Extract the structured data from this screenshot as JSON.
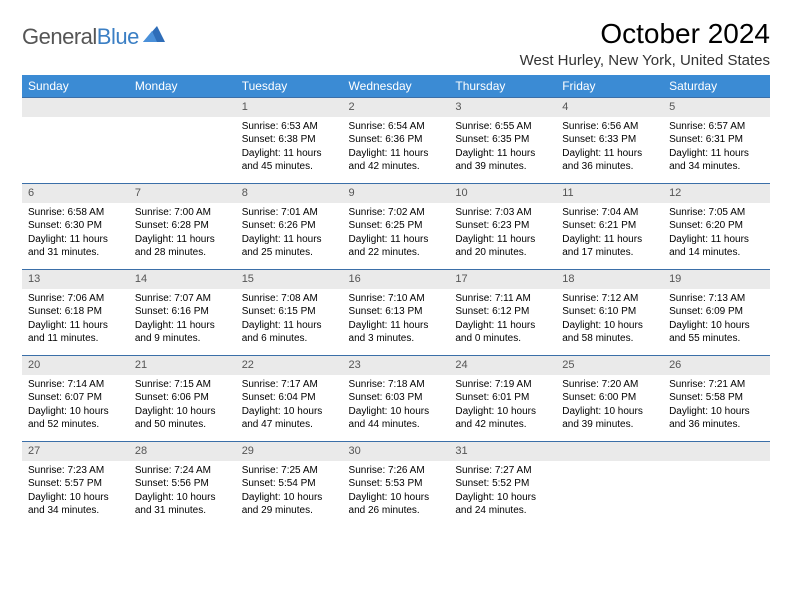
{
  "logo": {
    "text1": "General",
    "text2": "Blue"
  },
  "title": "October 2024",
  "location": "West Hurley, New York, United States",
  "header_bg": "#3b8bd4",
  "row_border": "#3b6fa8",
  "daynum_bg": "#eaeaea",
  "weekdays": [
    "Sunday",
    "Monday",
    "Tuesday",
    "Wednesday",
    "Thursday",
    "Friday",
    "Saturday"
  ],
  "weeks": [
    [
      null,
      null,
      {
        "n": "1",
        "sr": "6:53 AM",
        "ss": "6:38 PM",
        "dl": "11 hours and 45 minutes."
      },
      {
        "n": "2",
        "sr": "6:54 AM",
        "ss": "6:36 PM",
        "dl": "11 hours and 42 minutes."
      },
      {
        "n": "3",
        "sr": "6:55 AM",
        "ss": "6:35 PM",
        "dl": "11 hours and 39 minutes."
      },
      {
        "n": "4",
        "sr": "6:56 AM",
        "ss": "6:33 PM",
        "dl": "11 hours and 36 minutes."
      },
      {
        "n": "5",
        "sr": "6:57 AM",
        "ss": "6:31 PM",
        "dl": "11 hours and 34 minutes."
      }
    ],
    [
      {
        "n": "6",
        "sr": "6:58 AM",
        "ss": "6:30 PM",
        "dl": "11 hours and 31 minutes."
      },
      {
        "n": "7",
        "sr": "7:00 AM",
        "ss": "6:28 PM",
        "dl": "11 hours and 28 minutes."
      },
      {
        "n": "8",
        "sr": "7:01 AM",
        "ss": "6:26 PM",
        "dl": "11 hours and 25 minutes."
      },
      {
        "n": "9",
        "sr": "7:02 AM",
        "ss": "6:25 PM",
        "dl": "11 hours and 22 minutes."
      },
      {
        "n": "10",
        "sr": "7:03 AM",
        "ss": "6:23 PM",
        "dl": "11 hours and 20 minutes."
      },
      {
        "n": "11",
        "sr": "7:04 AM",
        "ss": "6:21 PM",
        "dl": "11 hours and 17 minutes."
      },
      {
        "n": "12",
        "sr": "7:05 AM",
        "ss": "6:20 PM",
        "dl": "11 hours and 14 minutes."
      }
    ],
    [
      {
        "n": "13",
        "sr": "7:06 AM",
        "ss": "6:18 PM",
        "dl": "11 hours and 11 minutes."
      },
      {
        "n": "14",
        "sr": "7:07 AM",
        "ss": "6:16 PM",
        "dl": "11 hours and 9 minutes."
      },
      {
        "n": "15",
        "sr": "7:08 AM",
        "ss": "6:15 PM",
        "dl": "11 hours and 6 minutes."
      },
      {
        "n": "16",
        "sr": "7:10 AM",
        "ss": "6:13 PM",
        "dl": "11 hours and 3 minutes."
      },
      {
        "n": "17",
        "sr": "7:11 AM",
        "ss": "6:12 PM",
        "dl": "11 hours and 0 minutes."
      },
      {
        "n": "18",
        "sr": "7:12 AM",
        "ss": "6:10 PM",
        "dl": "10 hours and 58 minutes."
      },
      {
        "n": "19",
        "sr": "7:13 AM",
        "ss": "6:09 PM",
        "dl": "10 hours and 55 minutes."
      }
    ],
    [
      {
        "n": "20",
        "sr": "7:14 AM",
        "ss": "6:07 PM",
        "dl": "10 hours and 52 minutes."
      },
      {
        "n": "21",
        "sr": "7:15 AM",
        "ss": "6:06 PM",
        "dl": "10 hours and 50 minutes."
      },
      {
        "n": "22",
        "sr": "7:17 AM",
        "ss": "6:04 PM",
        "dl": "10 hours and 47 minutes."
      },
      {
        "n": "23",
        "sr": "7:18 AM",
        "ss": "6:03 PM",
        "dl": "10 hours and 44 minutes."
      },
      {
        "n": "24",
        "sr": "7:19 AM",
        "ss": "6:01 PM",
        "dl": "10 hours and 42 minutes."
      },
      {
        "n": "25",
        "sr": "7:20 AM",
        "ss": "6:00 PM",
        "dl": "10 hours and 39 minutes."
      },
      {
        "n": "26",
        "sr": "7:21 AM",
        "ss": "5:58 PM",
        "dl": "10 hours and 36 minutes."
      }
    ],
    [
      {
        "n": "27",
        "sr": "7:23 AM",
        "ss": "5:57 PM",
        "dl": "10 hours and 34 minutes."
      },
      {
        "n": "28",
        "sr": "7:24 AM",
        "ss": "5:56 PM",
        "dl": "10 hours and 31 minutes."
      },
      {
        "n": "29",
        "sr": "7:25 AM",
        "ss": "5:54 PM",
        "dl": "10 hours and 29 minutes."
      },
      {
        "n": "30",
        "sr": "7:26 AM",
        "ss": "5:53 PM",
        "dl": "10 hours and 26 minutes."
      },
      {
        "n": "31",
        "sr": "7:27 AM",
        "ss": "5:52 PM",
        "dl": "10 hours and 24 minutes."
      },
      null,
      null
    ]
  ],
  "labels": {
    "sunrise": "Sunrise:",
    "sunset": "Sunset:",
    "daylight": "Daylight:"
  }
}
